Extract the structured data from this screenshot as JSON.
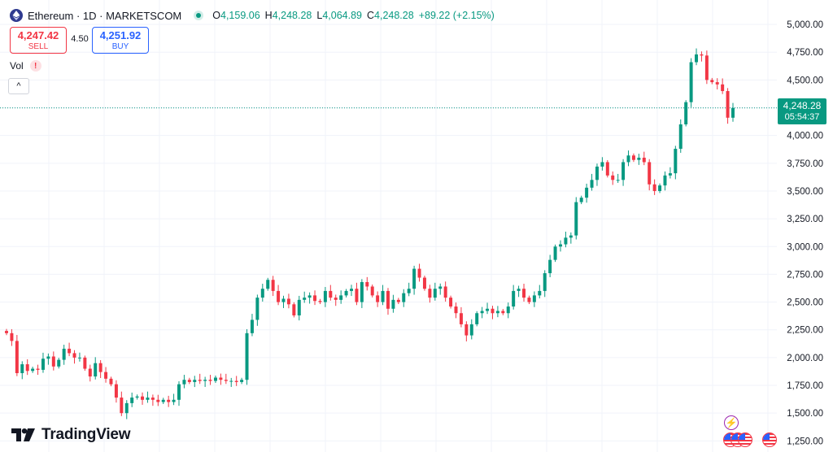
{
  "header": {
    "title": "Ethereum · 1D · MARKETSCOM",
    "open_key": "O",
    "open": "4,159.06",
    "high_key": "H",
    "high": "4,248.28",
    "low_key": "L",
    "low": "4,064.89",
    "close_key": "C",
    "close": "4,248.28",
    "change": "+89.22 (+2.15%)"
  },
  "trade": {
    "sell_price": "4,247.42",
    "sell_label": "SELL",
    "spread": "4.50",
    "buy_price": "4,251.92",
    "buy_label": "BUY"
  },
  "indicator": {
    "vol_label": "Vol",
    "warning_glyph": "!"
  },
  "collapse_glyph": "^",
  "branding": {
    "name": "TradingView"
  },
  "events": {
    "bolt_glyph": "⚡"
  },
  "price_label": {
    "value": "4,248.28",
    "countdown": "05:54:37"
  },
  "colors": {
    "up": "#089981",
    "down": "#f23645",
    "grid": "#f0f3fa",
    "axis_text": "#131722"
  },
  "chart_data": {
    "type": "candlestick",
    "symbol": "Ethereum",
    "interval": "1D",
    "y_ticks": [
      "5,000.00",
      "4,750.00",
      "4,500.00",
      "4,250.00",
      "4,000.00",
      "3,750.00",
      "3,500.00",
      "3,250.00",
      "3,000.00",
      "2,750.00",
      "2,500.00",
      "2,250.00",
      "2,000.00",
      "1,750.00",
      "1,500.00",
      "1,250.00"
    ],
    "y_tick_values": [
      5000,
      4750,
      4500,
      4250,
      4000,
      3750,
      3500,
      3250,
      3000,
      2750,
      2500,
      2250,
      2000,
      1750,
      1500,
      1250
    ],
    "ylim": [
      1150,
      5220
    ],
    "last_price": 4248.28,
    "grid": true,
    "closes": [
      2220,
      2150,
      1860,
      1940,
      1880,
      1900,
      1890,
      1990,
      2010,
      1920,
      1980,
      2080,
      2040,
      2000,
      2000,
      1900,
      1830,
      1950,
      1870,
      1810,
      1760,
      1640,
      1500,
      1590,
      1640,
      1650,
      1620,
      1640,
      1620,
      1600,
      1620,
      1600,
      1620,
      1760,
      1800,
      1780,
      1800,
      1790,
      1800,
      1790,
      1820,
      1800,
      1790,
      1790,
      1780,
      1800,
      2220,
      2340,
      2540,
      2620,
      2700,
      2600,
      2500,
      2530,
      2480,
      2380,
      2520,
      2540,
      2560,
      2510,
      2500,
      2600,
      2540,
      2520,
      2560,
      2600,
      2620,
      2500,
      2680,
      2640,
      2560,
      2500,
      2600,
      2440,
      2520,
      2500,
      2580,
      2620,
      2800,
      2720,
      2620,
      2540,
      2620,
      2640,
      2540,
      2460,
      2400,
      2300,
      2200,
      2300,
      2400,
      2420,
      2440,
      2400,
      2420,
      2400,
      2460,
      2600,
      2620,
      2540,
      2500,
      2560,
      2600,
      2760,
      2880,
      3000,
      3020,
      3080,
      3100,
      3400,
      3440,
      3530,
      3600,
      3720,
      3760,
      3640,
      3600,
      3600,
      3760,
      3820,
      3780,
      3800,
      3760,
      3560,
      3500,
      3550,
      3640,
      3660,
      3880,
      4100,
      4300,
      4660,
      4730,
      4720,
      4500,
      4480,
      4460,
      4400,
      4160,
      4248
    ]
  }
}
